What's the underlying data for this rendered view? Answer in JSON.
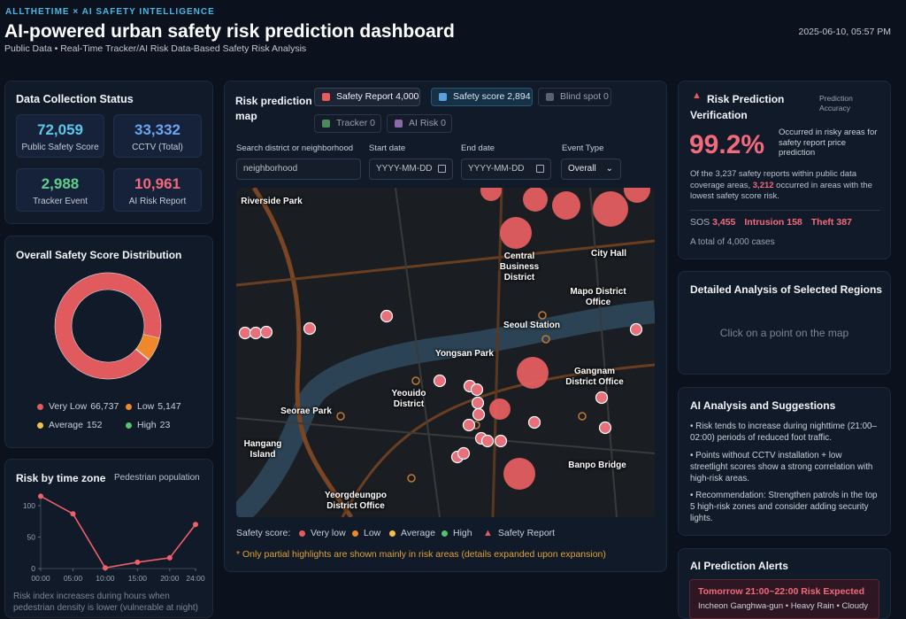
{
  "header": {
    "brand": "ALLTHETIME × AI SAFETY INTELLIGENCE",
    "title": "AI-powered urban safety risk prediction dashboard",
    "subtitle": "Public Data • Real-Time Tracker/AI Risk Data-Based Safety Risk Analysis",
    "timestamp": "2025-06-10, 05:57 PM"
  },
  "collection": {
    "title": "Data Collection Status",
    "stats": [
      {
        "value": "72,059",
        "label": "Public Safety Score"
      },
      {
        "value": "33,332",
        "label": "CCTV (Total)"
      },
      {
        "value": "2,988",
        "label": "Tracker Event"
      },
      {
        "value": "10,961",
        "label": "AI Risk Report"
      }
    ]
  },
  "chart_data": [
    {
      "type": "pie",
      "title": "Overall Safety Score Distribution",
      "categories": [
        "Very Low",
        "Low",
        "Average",
        "High"
      ],
      "values": [
        66737,
        5147,
        152,
        23
      ],
      "value_labels": [
        "66,737",
        "5,147",
        "152",
        "23"
      ],
      "colors": [
        "#e05a5e",
        "#f0882a",
        "#f0c24a",
        "#57c26e"
      ]
    },
    {
      "type": "line",
      "title": "Risk by time zone",
      "x": [
        0,
        5,
        10,
        15,
        20,
        24
      ],
      "series": [
        {
          "name": "Pedestrian population",
          "color": "#f0606a",
          "values": [
            115,
            87,
            1,
            10,
            17,
            70
          ]
        }
      ],
      "xlim": [
        0,
        24
      ],
      "ylim": [
        0,
        120
      ],
      "xticks": [
        {
          "value": 0,
          "label": "00:00"
        },
        {
          "value": 5,
          "label": "05:00"
        },
        {
          "value": 10,
          "label": "10:00"
        },
        {
          "value": 15,
          "label": "15:00"
        },
        {
          "value": 20,
          "label": "20:00"
        },
        {
          "value": 24,
          "label": "24:00"
        }
      ],
      "yticks": [
        0,
        50,
        100
      ],
      "caption": "Risk index increases during hours when pedestrian density is lower (vulnerable at night)"
    }
  ],
  "map": {
    "title": "Risk prediction map",
    "chips": [
      "Safety Report 4,000",
      "Safety score 2,894",
      "Blind spot 0",
      "Tracker 0",
      "AI Risk 0"
    ],
    "filters": [
      {
        "label": "Search district or neighborhood",
        "placeholder": "neighborhood"
      },
      {
        "label": "Start date",
        "placeholder": "YYYY-MM-DD"
      },
      {
        "label": "End date",
        "placeholder": "YYYY-MM-DD"
      },
      {
        "label": "Event Type",
        "placeholder": "Overall"
      }
    ],
    "places": [
      "Riverside Park",
      "Central Business District",
      "City Hall",
      "Mapo District Office",
      "Seoul Station",
      "Yongsan Park",
      "Gangnam District Office",
      "Yeouido District",
      "Seorae Park",
      "Hangang Island",
      "Banpo Bridge",
      "Yeorgdeungpo District Office"
    ],
    "legend": {
      "title": "Safety score:",
      "items": [
        "Very low",
        "Low",
        "Average",
        "High",
        "Safety Report"
      ]
    },
    "note": "* Only partial highlights are shown mainly in risk areas (details expanded upon expansion)"
  },
  "verification": {
    "title": "Risk Prediction Verification",
    "accuracy_label": "Prediction Accuracy",
    "accuracy": "99.2%",
    "accuracy_desc": "Occurred in risky areas for safety report price prediction",
    "summary": [
      "Of the 3,237 safety reports within public data coverage areas, ",
      "3,212",
      " occurred in areas with the lowest safety score risk."
    ],
    "counts": [
      {
        "label": "SOS",
        "value": "3,455"
      },
      {
        "label": "Intrusion",
        "value": "158"
      },
      {
        "label": "Theft",
        "value": "387"
      }
    ],
    "total": "A total of 4,000 cases"
  },
  "detail": {
    "title": "Detailed Analysis of Selected Regions",
    "placeholder": "Click on a point on the map"
  },
  "analysis": {
    "title": "AI Analysis and Suggestions",
    "items": [
      "Risk tends to increase during nighttime (21:00–02:00) periods of reduced foot traffic.",
      "Points without CCTV installation + low streetlight scores show a strong correlation with high-risk areas.",
      "Recommendation: Strengthen patrols in the top 5 high-risk zones and consider adding security lights."
    ]
  },
  "alerts": {
    "title": "AI Prediction Alerts",
    "items": [
      {
        "title": "Tomorrow 21:00~22:00 Risk Expected",
        "detail": "Incheon Ganghwa-gun • Heavy Rain • Cloudy"
      }
    ]
  }
}
